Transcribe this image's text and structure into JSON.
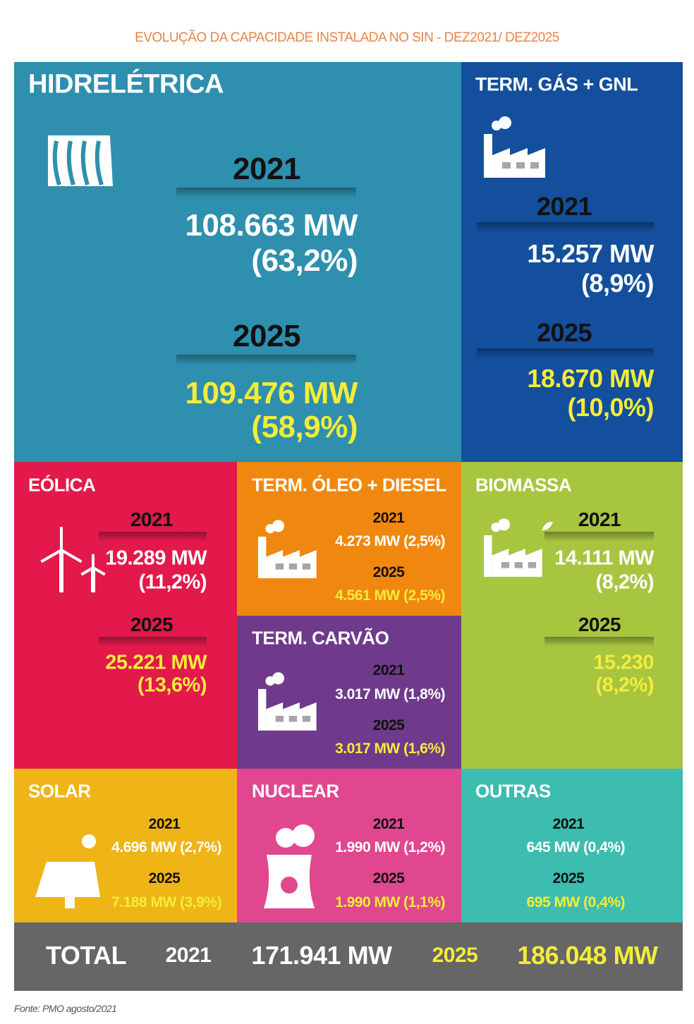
{
  "title": "EVOLUÇÃO DA CAPACIDADE INSTALADA NO SIN - DEZ2021/ DEZ2025",
  "tiles": [
    {
      "name": "HIDRELÉTRICA",
      "periods": [
        {
          "year": "2021",
          "lines": [
            "108.663 MW",
            "(63,2%)"
          ]
        },
        {
          "year": "2025",
          "lines": [
            "109.476 MW",
            "(58,9%)"
          ]
        }
      ]
    },
    {
      "name": "TERM. GÁS + GNL",
      "periods": [
        {
          "year": "2021",
          "lines": [
            "15.257 MW",
            "(8,9%)"
          ]
        },
        {
          "year": "2025",
          "lines": [
            "18.670 MW",
            "(10,0%)"
          ]
        }
      ]
    },
    {
      "name": "EÓLICA",
      "periods": [
        {
          "year": "2021",
          "lines": [
            "19.289 MW",
            "(11,2%)"
          ]
        },
        {
          "year": "2025",
          "lines": [
            "25.221 MW",
            "(13,6%)"
          ]
        }
      ]
    },
    {
      "name": "TERM. ÓLEO + DIESEL",
      "periods": [
        {
          "year": "2021",
          "lines": [
            "4.273 MW (2,5%)"
          ]
        },
        {
          "year": "2025",
          "lines": [
            "4.561 MW (2,5%)"
          ]
        }
      ]
    },
    {
      "name": "TERM. CARVÃO",
      "periods": [
        {
          "year": "2021",
          "lines": [
            "3.017 MW (1,8%)"
          ]
        },
        {
          "year": "2025",
          "lines": [
            "3.017 MW (1,6%)"
          ]
        }
      ]
    },
    {
      "name": "BIOMASSA",
      "periods": [
        {
          "year": "2021",
          "lines": [
            "14.111 MW",
            "(8,2%)"
          ]
        },
        {
          "year": "2025",
          "lines": [
            "15.230",
            "(8,2%)"
          ]
        }
      ]
    },
    {
      "name": "SOLAR",
      "periods": [
        {
          "year": "2021",
          "lines": [
            "4.696 MW (2,7%)"
          ]
        },
        {
          "year": "2025",
          "lines": [
            "7.188 MW (3,9%)"
          ]
        }
      ]
    },
    {
      "name": "NUCLEAR",
      "periods": [
        {
          "year": "2021",
          "lines": [
            "1.990 MW (1,2%)"
          ]
        },
        {
          "year": "2025",
          "lines": [
            "1.990 MW (1,1%)"
          ]
        }
      ]
    },
    {
      "name": "OUTRAS",
      "periods": [
        {
          "year": "2021",
          "lines": [
            "645 MW (0,4%)"
          ]
        },
        {
          "year": "2025",
          "lines": [
            "695 MW (0,4%)"
          ]
        }
      ]
    }
  ],
  "total": {
    "label": "TOTAL",
    "year1": "2021",
    "value1": "171.941 MW",
    "year2": "2025",
    "value2": "186.048 MW"
  },
  "source": "Fonte: PMO agosto/2021"
}
